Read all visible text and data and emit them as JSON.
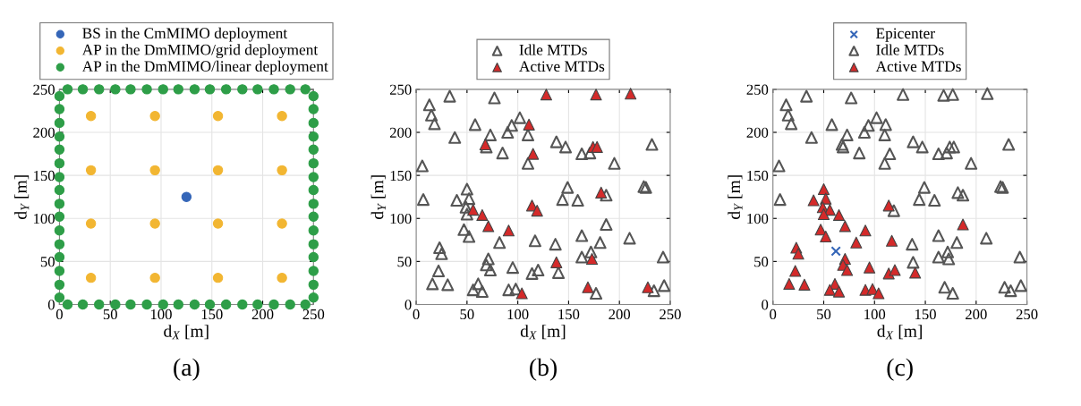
{
  "chart_data": [
    {
      "type": "scatter",
      "xlabel": "d$_{X}$ [m]",
      "ylabel": "d$_{Y}$ [m]",
      "xlim": [
        0,
        250
      ],
      "ylim": [
        0,
        250
      ],
      "xticks": [
        0,
        50,
        100,
        150,
        200,
        250
      ],
      "yticks": [
        0,
        50,
        100,
        150,
        200,
        250
      ],
      "grid": true,
      "legend": "top",
      "annotations": [
        "(a)"
      ],
      "series": [
        {
          "name": "BS in the CmMIMO deployment",
          "color": "#3566b8",
          "marker": "circle",
          "x": [
            125
          ],
          "values": [
            125
          ]
        },
        {
          "name": "AP in the DmMIMO/grid deployment",
          "color": "#f2b632",
          "marker": "circle",
          "x": [
            31,
            31,
            31,
            31,
            94,
            94,
            94,
            94,
            156,
            156,
            156,
            156,
            219,
            219,
            219,
            219
          ],
          "values": [
            31,
            94,
            156,
            219,
            31,
            94,
            156,
            219,
            31,
            94,
            156,
            219,
            31,
            94,
            156,
            219
          ]
        },
        {
          "name": "AP in the DmMIMO/linear deployment",
          "color": "#2e9e48",
          "marker": "circle",
          "x": [
            8,
            23,
            39,
            55,
            70,
            86,
            102,
            117,
            133,
            148,
            164,
            180,
            195,
            211,
            227,
            242,
            8,
            23,
            39,
            55,
            70,
            86,
            102,
            117,
            133,
            148,
            164,
            180,
            195,
            211,
            227,
            242,
            0,
            0,
            0,
            0,
            0,
            0,
            0,
            0,
            0,
            0,
            0,
            0,
            0,
            0,
            0,
            0,
            250,
            250,
            250,
            250,
            250,
            250,
            250,
            250,
            250,
            250,
            250,
            250,
            250,
            250,
            250,
            250
          ],
          "values": [
            0,
            0,
            0,
            0,
            0,
            0,
            0,
            0,
            0,
            0,
            0,
            0,
            0,
            0,
            0,
            0,
            250,
            250,
            250,
            250,
            250,
            250,
            250,
            250,
            250,
            250,
            250,
            250,
            250,
            250,
            250,
            250,
            8,
            23,
            39,
            55,
            70,
            86,
            102,
            117,
            133,
            148,
            164,
            180,
            195,
            211,
            227,
            242,
            8,
            23,
            39,
            55,
            70,
            86,
            102,
            117,
            133,
            148,
            164,
            180,
            195,
            211,
            227,
            242
          ]
        }
      ]
    },
    {
      "type": "scatter",
      "xlabel": "d$_{X}$ [m]",
      "ylabel": "d$_{Y}$ [m]",
      "xlim": [
        0,
        250
      ],
      "ylim": [
        0,
        250
      ],
      "xticks": [
        0,
        50,
        100,
        150,
        200,
        250
      ],
      "yticks": [
        0,
        50,
        100,
        150,
        200,
        250
      ],
      "grid": true,
      "legend": "top",
      "annotations": [
        "(b)"
      ],
      "series": [
        {
          "name": "Idle MTDs",
          "color": "#555555",
          "marker": "triangle",
          "x": [
            7,
            50,
            40,
            52,
            49,
            50,
            47,
            52,
            82,
            23,
            25,
            22,
            71,
            69,
            73,
            95,
            16,
            31,
            61,
            56,
            65,
            91,
            98,
            117,
            114,
            120,
            140,
            187,
            137,
            144,
            149,
            159,
            163,
            163,
            172,
            181,
            187,
            210,
            224,
            226,
            243,
            244,
            234,
            177,
            6,
            13,
            15,
            18,
            33,
            38,
            77,
            58,
            69,
            73,
            85,
            90,
            94,
            102,
            110,
            110,
            147,
            163,
            171,
            195,
            232,
            138
          ],
          "values": [
            122,
            134,
            121,
            123,
            113,
            105,
            87,
            79,
            72,
            66,
            59,
            39,
            53,
            46,
            40,
            43,
            24,
            23,
            24,
            17,
            15,
            17,
            18,
            74,
            36,
            40,
            37,
            93,
            70,
            122,
            136,
            121,
            80,
            55,
            61,
            72,
            127,
            77,
            137,
            136,
            55,
            22,
            16,
            13,
            161,
            232,
            220,
            210,
            242,
            194,
            240,
            209,
            183,
            197,
            176,
            200,
            208,
            217,
            197,
            164,
            183,
            175,
            176,
            164,
            186,
            189
          ]
        },
        {
          "name": "Active MTDs",
          "color": "#d42a2a",
          "marker": "triangle",
          "x": [
            56,
            65,
            71,
            91,
            104,
            114,
            119,
            138,
            173,
            182,
            228,
            169,
            68,
            111,
            115,
            128,
            174,
            178,
            177,
            211
          ],
          "values": [
            110,
            104,
            91,
            86,
            13,
            115,
            109,
            49,
            53,
            130,
            20,
            20,
            186,
            209,
            175,
            244,
            183,
            183,
            244,
            245
          ]
        }
      ]
    },
    {
      "type": "scatter",
      "xlabel": "d$_{X}$ [m]",
      "ylabel": "d$_{Y}$ [m]",
      "xlim": [
        0,
        250
      ],
      "ylim": [
        0,
        250
      ],
      "xticks": [
        0,
        50,
        100,
        150,
        200,
        250
      ],
      "yticks": [
        0,
        50,
        100,
        150,
        200,
        250
      ],
      "grid": true,
      "legend": "top",
      "annotations": [
        "(c)"
      ],
      "series": [
        {
          "name": "Epicenter",
          "color": "#3566b8",
          "marker": "cross",
          "x": [
            62
          ],
          "values": [
            62
          ]
        },
        {
          "name": "Idle MTDs",
          "color": "#555555",
          "marker": "triangle",
          "x": [
            7,
            119,
            137,
            138,
            144,
            149,
            159,
            163,
            163,
            172,
            173,
            181,
            182,
            187,
            210,
            224,
            226,
            243,
            244,
            228,
            234,
            169,
            177,
            6,
            13,
            15,
            18,
            33,
            38,
            77,
            58,
            68,
            69,
            73,
            85,
            90,
            94,
            102,
            110,
            111,
            110,
            115,
            128,
            147,
            163,
            171,
            174,
            178,
            168,
            177,
            195,
            211,
            232,
            138
          ],
          "values": [
            122,
            109,
            70,
            49,
            122,
            136,
            121,
            80,
            55,
            61,
            53,
            72,
            130,
            127,
            77,
            137,
            136,
            55,
            22,
            20,
            16,
            20,
            13,
            161,
            232,
            220,
            210,
            242,
            194,
            240,
            209,
            186,
            183,
            197,
            176,
            200,
            208,
            217,
            197,
            209,
            164,
            175,
            244,
            183,
            175,
            176,
            183,
            183,
            243,
            244,
            164,
            245,
            186,
            189
          ]
        },
        {
          "name": "Active MTDs",
          "color": "#d42a2a",
          "marker": "triangle",
          "x": [
            50,
            40,
            52,
            49,
            56,
            50,
            65,
            47,
            52,
            71,
            91,
            82,
            23,
            25,
            22,
            71,
            69,
            73,
            95,
            16,
            31,
            61,
            56,
            65,
            91,
            98,
            104,
            114,
            117,
            114,
            120,
            140,
            187
          ],
          "values": [
            134,
            121,
            123,
            113,
            110,
            105,
            104,
            87,
            79,
            91,
            86,
            72,
            66,
            59,
            39,
            53,
            46,
            40,
            43,
            24,
            23,
            24,
            17,
            15,
            17,
            18,
            13,
            115,
            74,
            36,
            40,
            37,
            93
          ]
        }
      ]
    }
  ]
}
